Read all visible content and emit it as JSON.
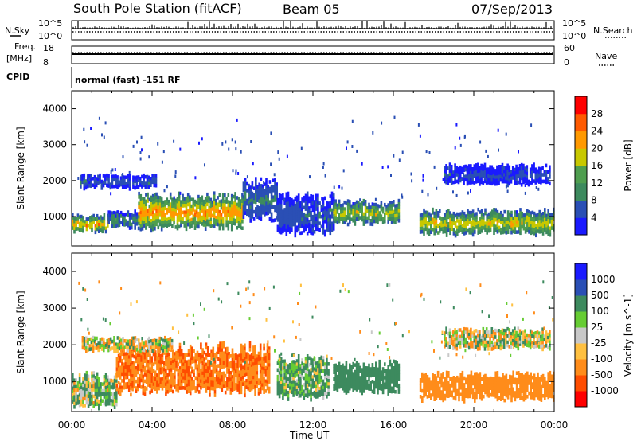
{
  "header": {
    "station": "South Pole Station (fitACF)",
    "beam": "Beam 05",
    "date": "07/Sep/2013"
  },
  "panels": {
    "nsky": {
      "label": "N.Sky",
      "ticks": [
        "10^5",
        "10^0"
      ]
    },
    "nsearch": {
      "label": "N.Search",
      "ticks": [
        "10^5",
        "10^0"
      ]
    },
    "freq": {
      "label_line1": "Freq.",
      "label_line2": "[MHz]",
      "ticks": [
        "18",
        "8"
      ]
    },
    "nave": {
      "label": "Nave",
      "ticks": [
        "60",
        "0"
      ]
    },
    "cpid": {
      "label": "CPID",
      "text": "normal (fast) -151 RF"
    }
  },
  "colors": {
    "power": [
      "#1a1aff",
      "#2a4fb5",
      "#3d8a5e",
      "#4f9e4f",
      "#c8c800",
      "#ff9900",
      "#ff5a00",
      "#ff0000"
    ],
    "velocity": [
      "#ff0000",
      "#ff4d00",
      "#ff8c1a",
      "#ffc040",
      "#c8c8c8",
      "#66cc33",
      "#3d8a5e",
      "#2a4fb5",
      "#1a1aff"
    ]
  },
  "chart_data": [
    {
      "type": "heatmap",
      "name": "power",
      "ylabel": "Slant Range [km]",
      "xlabel": "Time UT",
      "x_ticks": [
        "00:00",
        "04:00",
        "08:00",
        "12:00",
        "16:00",
        "20:00",
        "00:00"
      ],
      "y_ticks": [
        1000,
        2000,
        3000,
        4000
      ],
      "ylim": [
        180,
        4500
      ],
      "xlim_hours": [
        0,
        24
      ],
      "colorbar": {
        "label": "Power [dB]",
        "ticks": [
          4,
          8,
          12,
          16,
          20,
          24,
          28
        ],
        "range": [
          0,
          32
        ]
      },
      "features": [
        {
          "t": [
            0.0,
            1.8
          ],
          "range_km": [
            600,
            1100
          ],
          "level_db": 22
        },
        {
          "t": [
            1.8,
            3.3
          ],
          "range_km": [
            700,
            1200
          ],
          "level_db": 10
        },
        {
          "t": [
            3.3,
            8.5
          ],
          "range_km": [
            650,
            1700
          ],
          "level_db": 24
        },
        {
          "t": [
            8.5,
            10.2
          ],
          "range_km": [
            900,
            2100
          ],
          "level_db": 9
        },
        {
          "t": [
            10.2,
            13.0
          ],
          "range_km": [
            500,
            1700
          ],
          "level_db": 7
        },
        {
          "t": [
            13.0,
            16.3
          ],
          "range_km": [
            800,
            1500
          ],
          "level_db": 18
        },
        {
          "t": [
            17.3,
            24.0
          ],
          "range_km": [
            500,
            1250
          ],
          "level_db": 20
        },
        {
          "t": [
            0.4,
            4.2
          ],
          "range_km": [
            1800,
            2200
          ],
          "level_db": 6
        },
        {
          "t": [
            18.5,
            23.8
          ],
          "range_km": [
            1900,
            2500
          ],
          "level_db": 5
        }
      ]
    },
    {
      "type": "heatmap",
      "name": "velocity",
      "ylabel": "Slant Range [km]",
      "xlabel": "Time UT",
      "x_ticks": [
        "00:00",
        "04:00",
        "08:00",
        "12:00",
        "16:00",
        "20:00",
        "00:00"
      ],
      "y_ticks": [
        1000,
        2000,
        3000,
        4000
      ],
      "ylim": [
        180,
        4500
      ],
      "xlim_hours": [
        0,
        24
      ],
      "colorbar": {
        "label": "Velocity [m s^-1]",
        "ticks": [
          1000,
          500,
          100,
          25,
          -25,
          -100,
          -500,
          -1000
        ]
      },
      "features": [
        {
          "t": [
            0.0,
            2.2
          ],
          "range_km": [
            300,
            1300
          ],
          "velocity": 80
        },
        {
          "t": [
            2.2,
            9.8
          ],
          "range_km": [
            650,
            2100
          ],
          "velocity": -450
        },
        {
          "t": [
            0.5,
            5.0
          ],
          "range_km": [
            1850,
            2250
          ],
          "velocity": 0
        },
        {
          "t": [
            10.2,
            12.8
          ],
          "range_km": [
            500,
            1800
          ],
          "velocity": 150
        },
        {
          "t": [
            13.0,
            16.3
          ],
          "range_km": [
            700,
            1600
          ],
          "velocity": 300
        },
        {
          "t": [
            17.3,
            24.0
          ],
          "range_km": [
            500,
            1300
          ],
          "velocity": -300
        },
        {
          "t": [
            18.5,
            23.8
          ],
          "range_km": [
            1900,
            2500
          ],
          "velocity": 0
        }
      ]
    }
  ]
}
